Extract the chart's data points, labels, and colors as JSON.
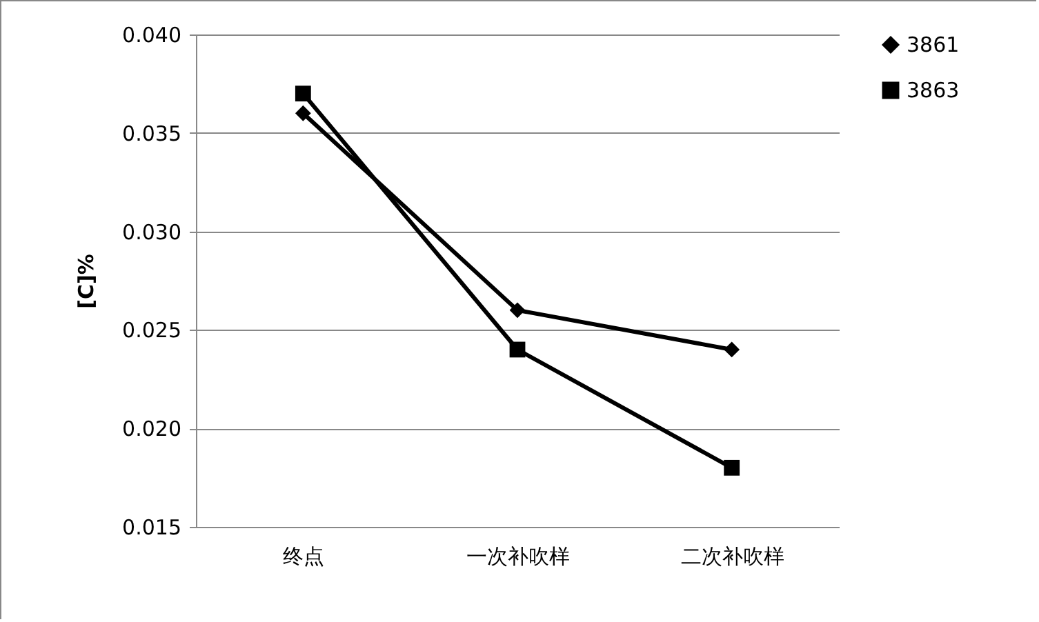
{
  "chart_data": {
    "type": "line",
    "ylabel": "[C]%",
    "categories": [
      "终点",
      "一次补吹样",
      "二次补吹样"
    ],
    "series": [
      {
        "name": "3861",
        "color": "#000000",
        "marker": "diamond",
        "values": [
          0.036,
          0.026,
          0.024
        ]
      },
      {
        "name": "3863",
        "color": "#000000",
        "marker": "square",
        "values": [
          0.037,
          0.024,
          0.018
        ]
      }
    ],
    "ylim": [
      0.015,
      0.04
    ],
    "yticks": [
      {
        "value": 0.015,
        "label": "0.015"
      },
      {
        "value": 0.02,
        "label": "0.020"
      },
      {
        "value": 0.025,
        "label": "0.025"
      },
      {
        "value": 0.03,
        "label": "0.030"
      },
      {
        "value": 0.035,
        "label": "0.035"
      },
      {
        "value": 0.04,
        "label": "0.040"
      }
    ],
    "grid": "y",
    "legend": "right",
    "line_style": "solid"
  }
}
